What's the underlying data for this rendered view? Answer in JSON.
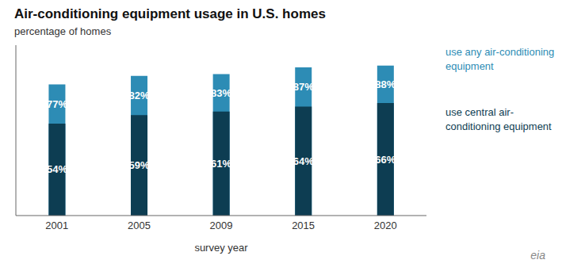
{
  "chart_data": {
    "type": "bar",
    "title": "Air-conditioning equipment usage in U.S. homes",
    "subtitle": "percentage of homes",
    "x_label": "survey year",
    "categories": [
      "2001",
      "2005",
      "2009",
      "2015",
      "2020"
    ],
    "series": [
      {
        "name": "use central air-conditioning equipment",
        "color": "#0d3d52",
        "values": [
          54,
          59,
          61,
          64,
          66
        ],
        "value_labels": [
          "54%",
          "59%",
          "61%",
          "64%",
          "66%"
        ]
      },
      {
        "name": "use any air-conditioning equipment",
        "color": "#2d8cb5",
        "values": [
          77,
          82,
          83,
          87,
          88
        ],
        "value_labels": [
          "77%",
          "82%",
          "83%",
          "87%",
          "88%"
        ]
      }
    ],
    "ylim": [
      0,
      100
    ],
    "tick_labels": "x",
    "grid": false,
    "legend": "right",
    "data_labels": true,
    "annotations": [
      {
        "text": "eia"
      }
    ]
  }
}
